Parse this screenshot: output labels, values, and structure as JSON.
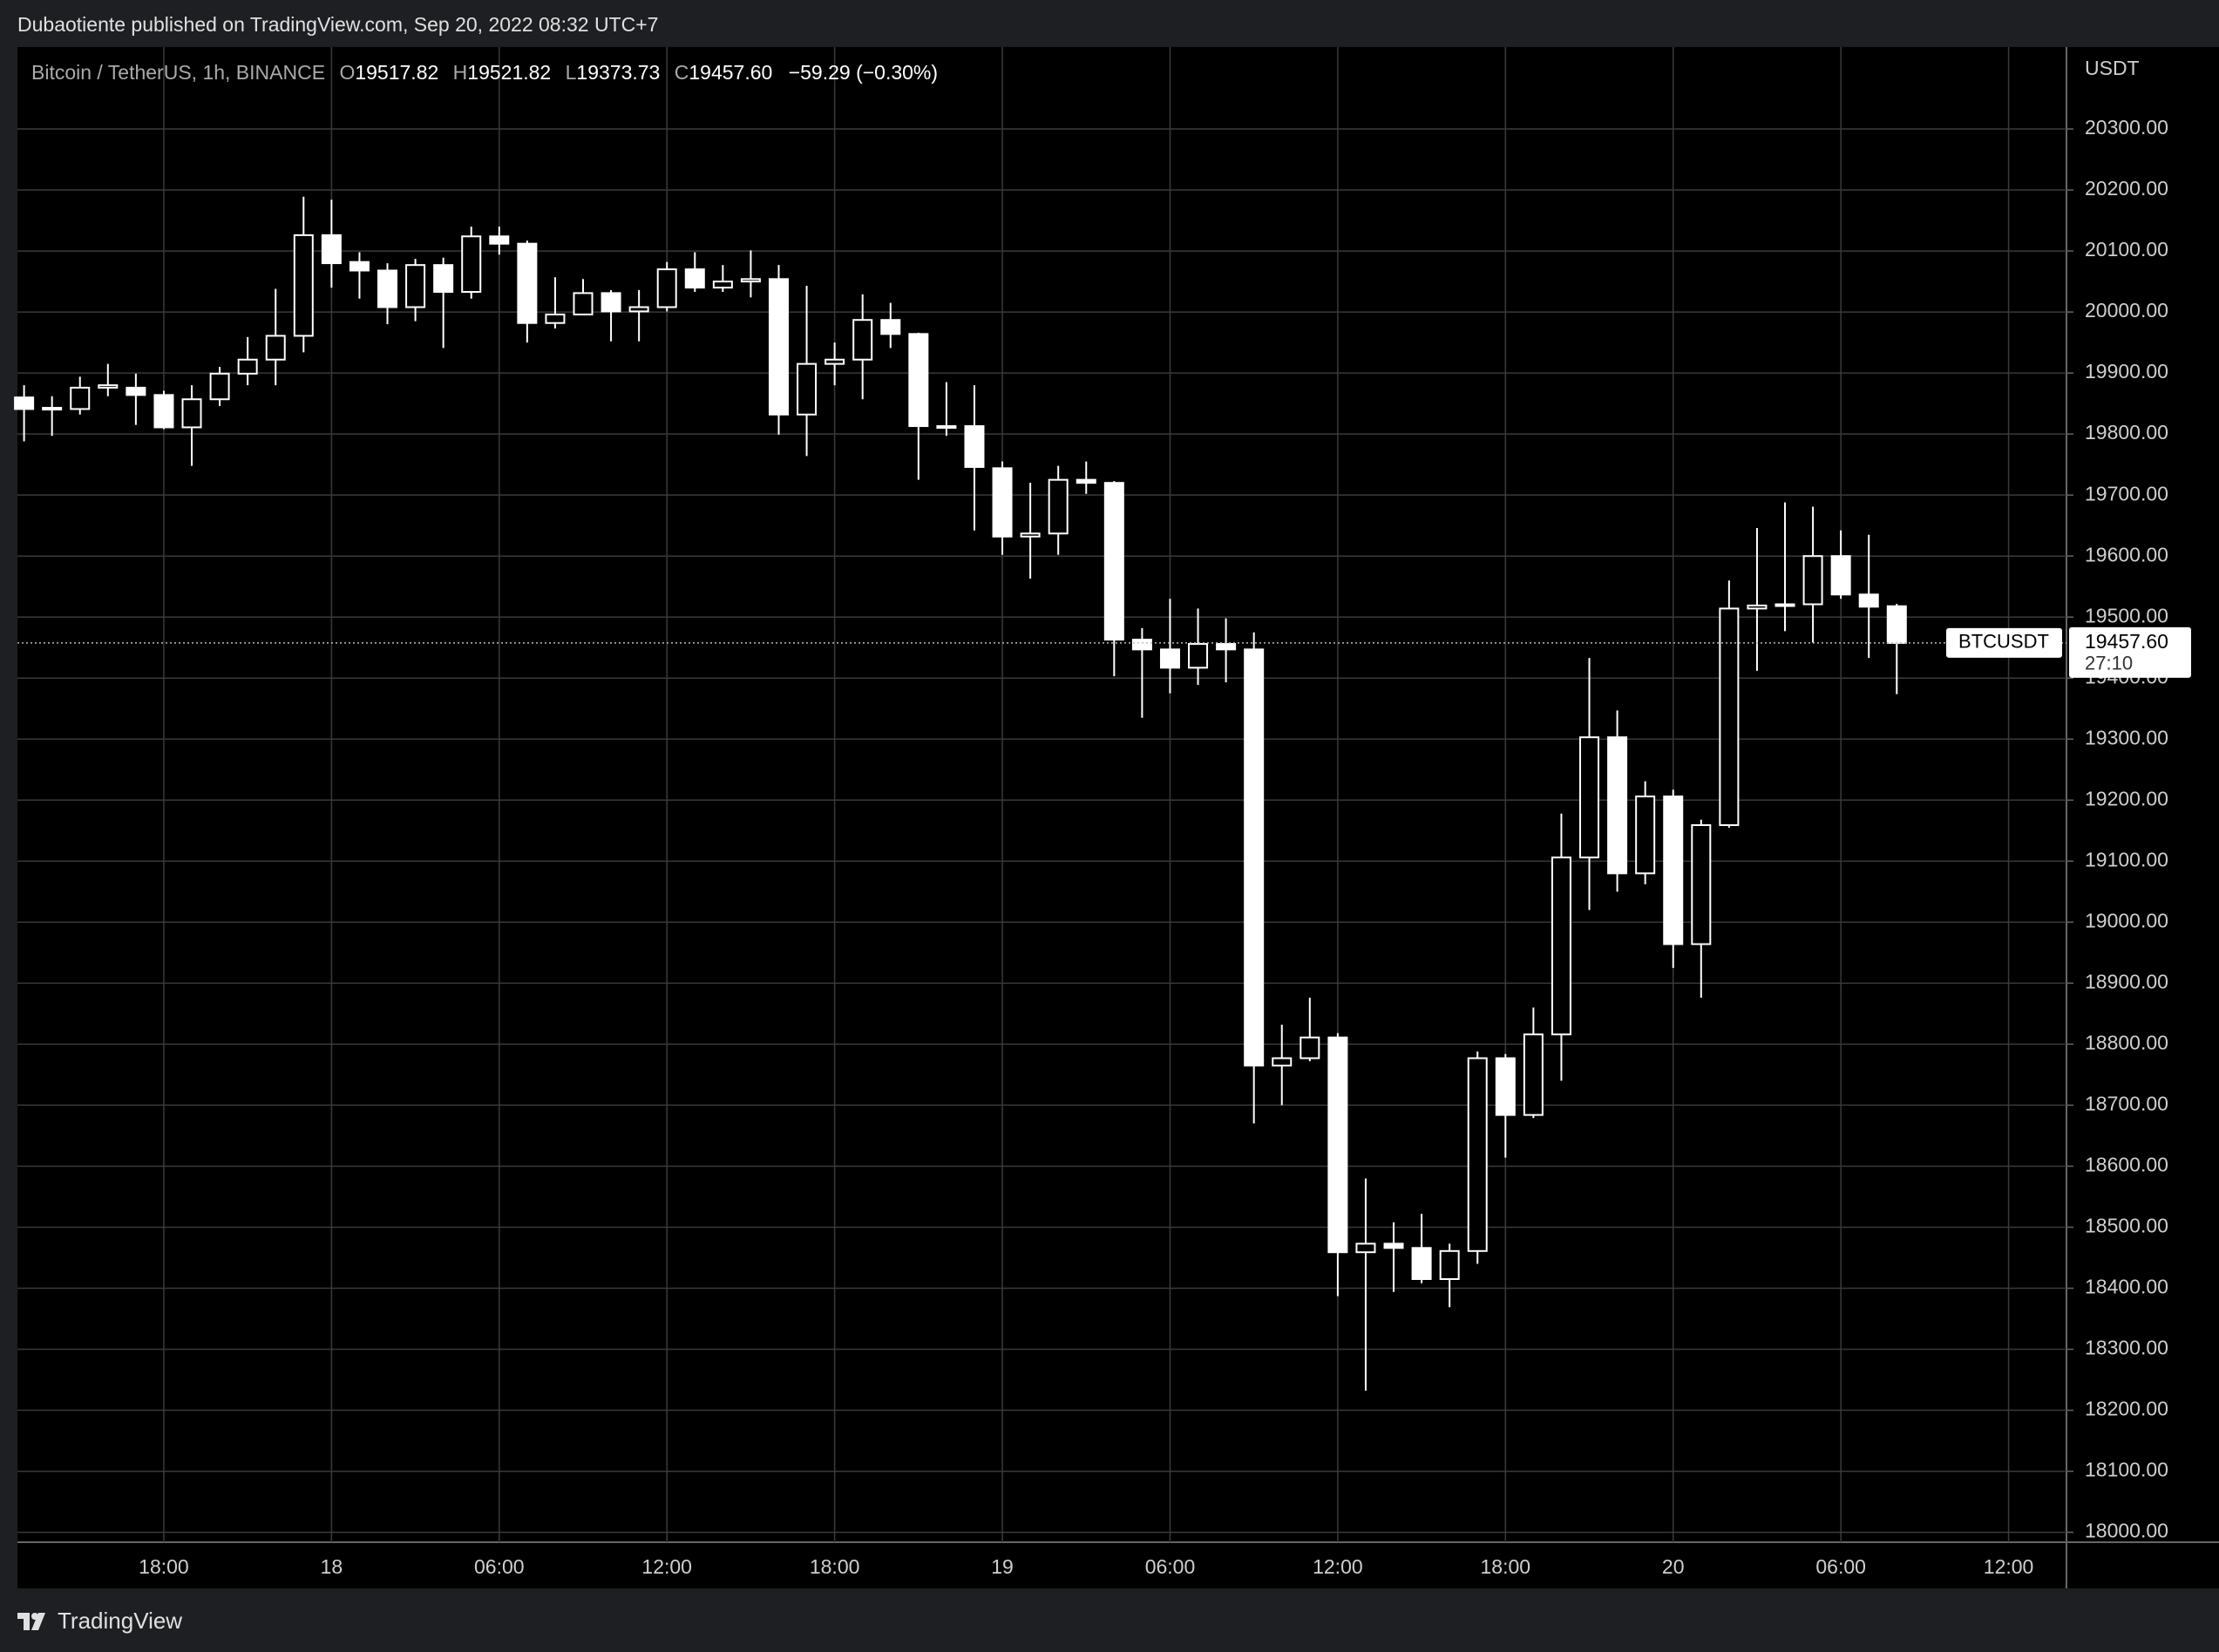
{
  "header": {
    "text": "Dubaotiente published on TradingView.com, Sep 20, 2022 08:32 UTC+7"
  },
  "chart_data": {
    "type": "candlestick",
    "title": "Bitcoin / TetherUS, 1h, BINANCE",
    "ohlc_letters": [
      "O",
      "H",
      "L",
      "C"
    ],
    "ohlc_labels": [
      "19517.82",
      "19521.82",
      "19373.73",
      "19457.60"
    ],
    "change": "−59.29 (−0.30%)",
    "open": [
      19860,
      19841,
      19841,
      19876,
      19876,
      19864,
      19811,
      19857,
      19899,
      19922,
      19961,
      20126,
      20082,
      20068,
      20008,
      20077,
      20033,
      20124,
      20112,
      19982,
      19996,
      20031,
      20001,
      20008,
      20070,
      20040,
      20050,
      20054,
      19832,
      19915,
      19922,
      19987,
      19964,
      19813,
      19813,
      19744,
      19632,
      19637,
      19725,
      19720,
      19463,
      19447,
      19417,
      19456,
      19447,
      18765,
      18777,
      18811,
      18459,
      18473,
      18466,
      18415,
      18461,
      18777,
      18684,
      18816,
      19106,
      19303,
      19080,
      19206,
      18964,
      19159,
      19514,
      19519,
      19521,
      19600,
      19537,
      19517.82
    ],
    "high": [
      19880,
      19862,
      19894,
      19915,
      19899,
      19871,
      19880,
      19910,
      19959,
      20038,
      20189,
      20184,
      20098,
      20080,
      20087,
      20089,
      20140,
      20140,
      20117,
      20057,
      20054,
      20036,
      20036,
      20082,
      20098,
      20077,
      20101,
      20077,
      20043,
      19950,
      20029,
      20015,
      19966,
      19885,
      19880,
      19755,
      19720,
      19748,
      19755,
      19723,
      19482,
      19530,
      19514,
      19498,
      19475,
      18832,
      18876,
      18818,
      18580,
      18508,
      18522,
      18473,
      18788,
      18784,
      18860,
      19178,
      19433,
      19347,
      19231,
      19217,
      19168,
      19560,
      19646,
      19688,
      19681,
      19642,
      19635,
      19521.82
    ],
    "low": [
      19788,
      19797,
      19832,
      19862,
      19815,
      19808,
      19748,
      19846,
      19880,
      19880,
      19934,
      20040,
      20022,
      19980,
      19985,
      19941,
      20022,
      20094,
      19950,
      19973,
      19996,
      19952,
      19952,
      20001,
      20033,
      20033,
      20024,
      19799,
      19764,
      19880,
      19857,
      19941,
      19725,
      19797,
      19642,
      19602,
      19563,
      19602,
      19702,
      19403,
      19335,
      19375,
      19389,
      19393,
      18670,
      18700,
      18772,
      18387,
      18232,
      18394,
      18408,
      18369,
      18440,
      18614,
      18679,
      18740,
      19020,
      19050,
      19062,
      18925,
      18876,
      19155,
      19412,
      19477,
      19458,
      19530,
      19433,
      19373.73
    ],
    "close": [
      19841,
      19843,
      19876,
      19880,
      19864,
      19811,
      19857,
      19899,
      19922,
      19961,
      20126,
      20080,
      20068,
      20008,
      20077,
      20033,
      20124,
      20112,
      19982,
      19996,
      20031,
      20001,
      20008,
      20070,
      20040,
      20050,
      20054,
      19832,
      19915,
      19922,
      19987,
      19964,
      19813,
      19813,
      19746,
      19632,
      19637,
      19725,
      19720,
      19463,
      19447,
      19417,
      19456,
      19447,
      18765,
      18777,
      18811,
      18459,
      18473,
      18466,
      18415,
      18461,
      18777,
      18684,
      18816,
      19106,
      19303,
      19080,
      19206,
      18964,
      19159,
      19514,
      19519,
      19521,
      19600,
      19537,
      19517,
      19457.6
    ],
    "color": "#ffffff",
    "grid": true,
    "ylim": [
      17988,
      20430
    ],
    "yticks": [
      {
        "value": 18000,
        "label": "18000.00"
      },
      {
        "value": 18100,
        "label": "18100.00"
      },
      {
        "value": 18200,
        "label": "18200.00"
      },
      {
        "value": 18300,
        "label": "18300.00"
      },
      {
        "value": 18400,
        "label": "18400.00"
      },
      {
        "value": 18500,
        "label": "18500.00"
      },
      {
        "value": 18600,
        "label": "18600.00"
      },
      {
        "value": 18700,
        "label": "18700.00"
      },
      {
        "value": 18800,
        "label": "18800.00"
      },
      {
        "value": 18900,
        "label": "18900.00"
      },
      {
        "value": 19000,
        "label": "19000.00"
      },
      {
        "value": 19100,
        "label": "19100.00"
      },
      {
        "value": 19200,
        "label": "19200.00"
      },
      {
        "value": 19300,
        "label": "19300.00"
      },
      {
        "value": 19400,
        "label": "19400.00"
      },
      {
        "value": 19500,
        "label": "19500.00"
      },
      {
        "value": 19600,
        "label": "19600.00"
      },
      {
        "value": 19700,
        "label": "19700.00"
      },
      {
        "value": 19800,
        "label": "19800.00"
      },
      {
        "value": 19900,
        "label": "19900.00"
      },
      {
        "value": 20000,
        "label": "20000.00"
      },
      {
        "value": 20100,
        "label": "20100.00"
      },
      {
        "value": 20200,
        "label": "20200.00"
      },
      {
        "value": 20300,
        "label": "20300.00"
      }
    ],
    "y_unit": "USDT",
    "xticks": [
      {
        "value": 5,
        "label": "18:00"
      },
      {
        "value": 11,
        "label": "18"
      },
      {
        "value": 17,
        "label": "06:00"
      },
      {
        "value": 23,
        "label": "12:00"
      },
      {
        "value": 29,
        "label": "18:00"
      },
      {
        "value": 35,
        "label": "19"
      },
      {
        "value": 41,
        "label": "06:00"
      },
      {
        "value": 47,
        "label": "12:00"
      },
      {
        "value": 53,
        "label": "18:00"
      },
      {
        "value": 59,
        "label": "20"
      },
      {
        "value": 65,
        "label": "06:00"
      },
      {
        "value": 71,
        "label": "12:00"
      }
    ],
    "symbol": "BTCUSDT",
    "countdown": "27:10"
  },
  "footer": {
    "brand": "TradingView"
  }
}
